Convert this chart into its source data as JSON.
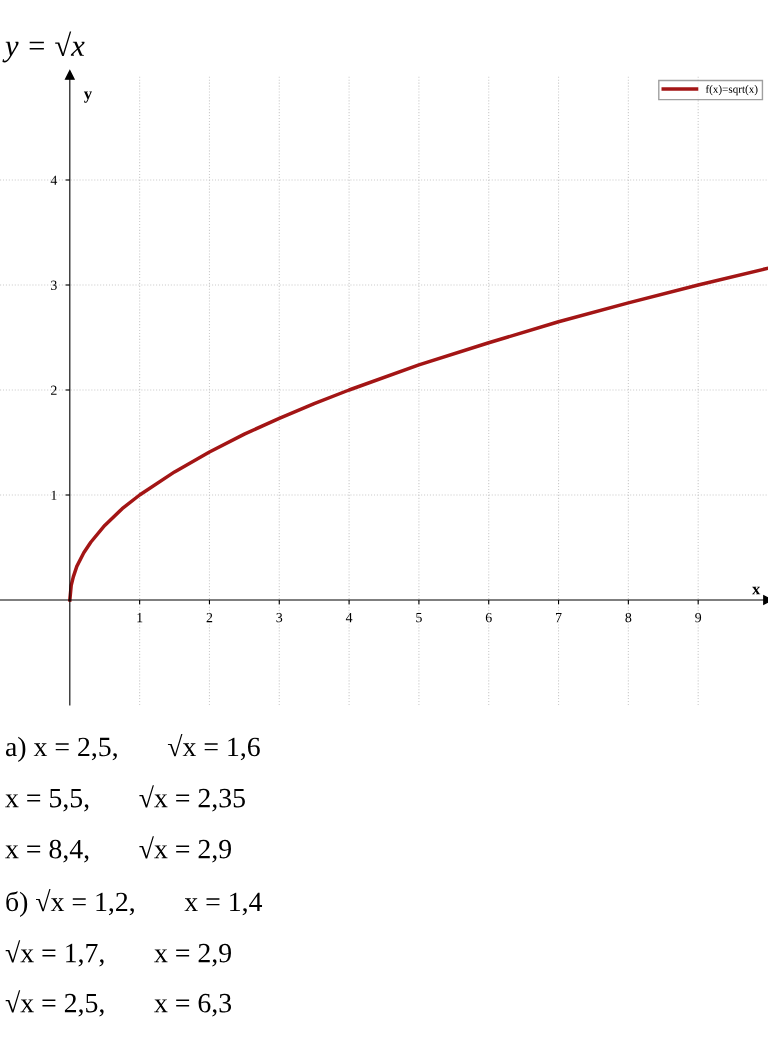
{
  "chart_data": {
    "type": "line",
    "title": "y = √x",
    "xlabel": "x",
    "ylabel": "y",
    "series": [
      {
        "name": "f(x)=sqrt(x)",
        "color": "#a31515",
        "x": [
          0,
          0.02,
          0.05,
          0.1,
          0.2,
          0.3,
          0.5,
          0.75,
          1,
          1.5,
          2,
          2.5,
          3,
          3.5,
          4,
          5,
          6,
          7,
          8,
          9,
          10
        ],
        "values": [
          0,
          0.14,
          0.22,
          0.32,
          0.45,
          0.55,
          0.71,
          0.87,
          1,
          1.22,
          1.41,
          1.58,
          1.73,
          1.87,
          2,
          2.24,
          2.45,
          2.65,
          2.83,
          3,
          3.16
        ]
      }
    ],
    "xlim": [
      -1,
      10
    ],
    "ylim": [
      -1,
      5
    ],
    "xticks": [
      1,
      2,
      3,
      4,
      5,
      6,
      7,
      8,
      9
    ],
    "yticks": [
      1,
      2,
      3,
      4
    ],
    "grid": true,
    "legend": "top right",
    "marker": "none",
    "line_style": "solid",
    "annotations": [
      "а) x = 2,5,       √x = 1,6",
      "x = 5,5,       √x = 2,35",
      "x = 8,4,       √x = 2,9",
      "б) √x = 1,2,       x = 1,4",
      "√x = 1,7,       x = 2,9",
      "√x = 2,5,       x = 6,3"
    ]
  }
}
